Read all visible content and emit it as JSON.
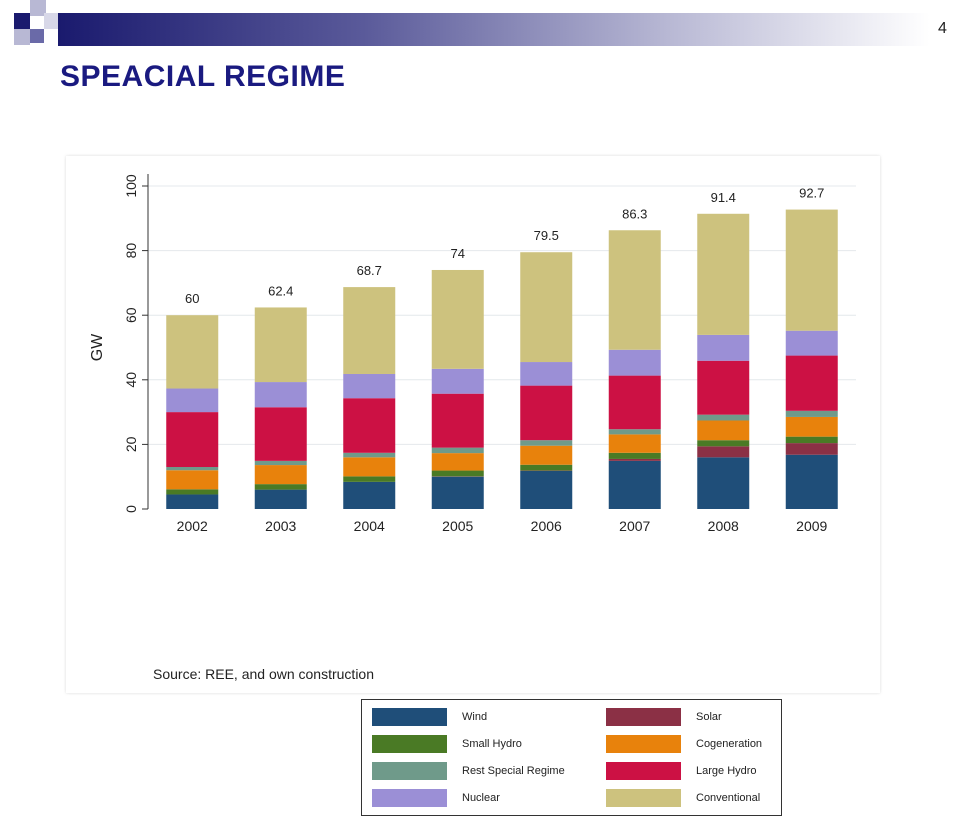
{
  "slide": {
    "title": "SPEACIAL REGIME",
    "page_number": "4",
    "source": "Source: REE, and own construction"
  },
  "colors": {
    "title": "#1a1a80",
    "banner_dark": "#1a1a6e",
    "Wind": "#1f4e79",
    "Solar": "#8b3045",
    "Small Hydro": "#4a7a25",
    "Cogeneration": "#e8820c",
    "Rest Special Regime": "#6f9a8a",
    "Large Hydro": "#cc1144",
    "Nuclear": "#9b8fd6",
    "Conventional": "#cdc27e"
  },
  "chart_data": {
    "type": "bar",
    "stacked": true,
    "categories": [
      "2002",
      "2003",
      "2004",
      "2005",
      "2006",
      "2007",
      "2008",
      "2009"
    ],
    "ylabel": "GW",
    "xlabel": "",
    "ylim": [
      0,
      100
    ],
    "yticks": [
      0,
      20,
      40,
      60,
      80,
      100
    ],
    "grid": true,
    "totals": [
      60,
      62.4,
      68.7,
      74,
      79.5,
      86.3,
      91.4,
      92.7
    ],
    "total_labels": [
      "60",
      "62.4",
      "68.7",
      "74",
      "79.5",
      "86.3",
      "91.4",
      "92.7"
    ],
    "series": [
      {
        "name": "Wind",
        "values": [
          4.5,
          6.0,
          8.4,
          10.0,
          11.8,
          14.9,
          16.0,
          16.8
        ]
      },
      {
        "name": "Solar",
        "values": [
          0.0,
          0.0,
          0.0,
          0.1,
          0.1,
          0.6,
          3.4,
          3.6
        ]
      },
      {
        "name": "Small Hydro",
        "values": [
          1.6,
          1.7,
          1.7,
          1.8,
          1.8,
          1.9,
          1.9,
          2.0
        ]
      },
      {
        "name": "Cogeneration",
        "values": [
          5.9,
          5.9,
          5.9,
          5.4,
          5.9,
          5.7,
          6.1,
          6.1
        ]
      },
      {
        "name": "Rest Special Regime",
        "values": [
          1.0,
          1.3,
          1.4,
          1.7,
          1.7,
          1.6,
          1.8,
          1.9
        ]
      },
      {
        "name": "Large Hydro",
        "values": [
          17.0,
          16.6,
          16.9,
          16.7,
          16.9,
          16.6,
          16.7,
          17.1
        ]
      },
      {
        "name": "Nuclear",
        "values": [
          7.3,
          7.8,
          7.5,
          7.7,
          7.3,
          8.0,
          8.0,
          7.7
        ]
      },
      {
        "name": "Conventional",
        "values": [
          22.7,
          23.1,
          26.9,
          30.6,
          34.0,
          37.0,
          37.5,
          37.5
        ]
      }
    ],
    "legend_position": "bottom",
    "legend_order": [
      "Wind",
      "Solar",
      "Small Hydro",
      "Cogeneration",
      "Rest Special Regime",
      "Large Hydro",
      "Nuclear",
      "Conventional"
    ]
  }
}
